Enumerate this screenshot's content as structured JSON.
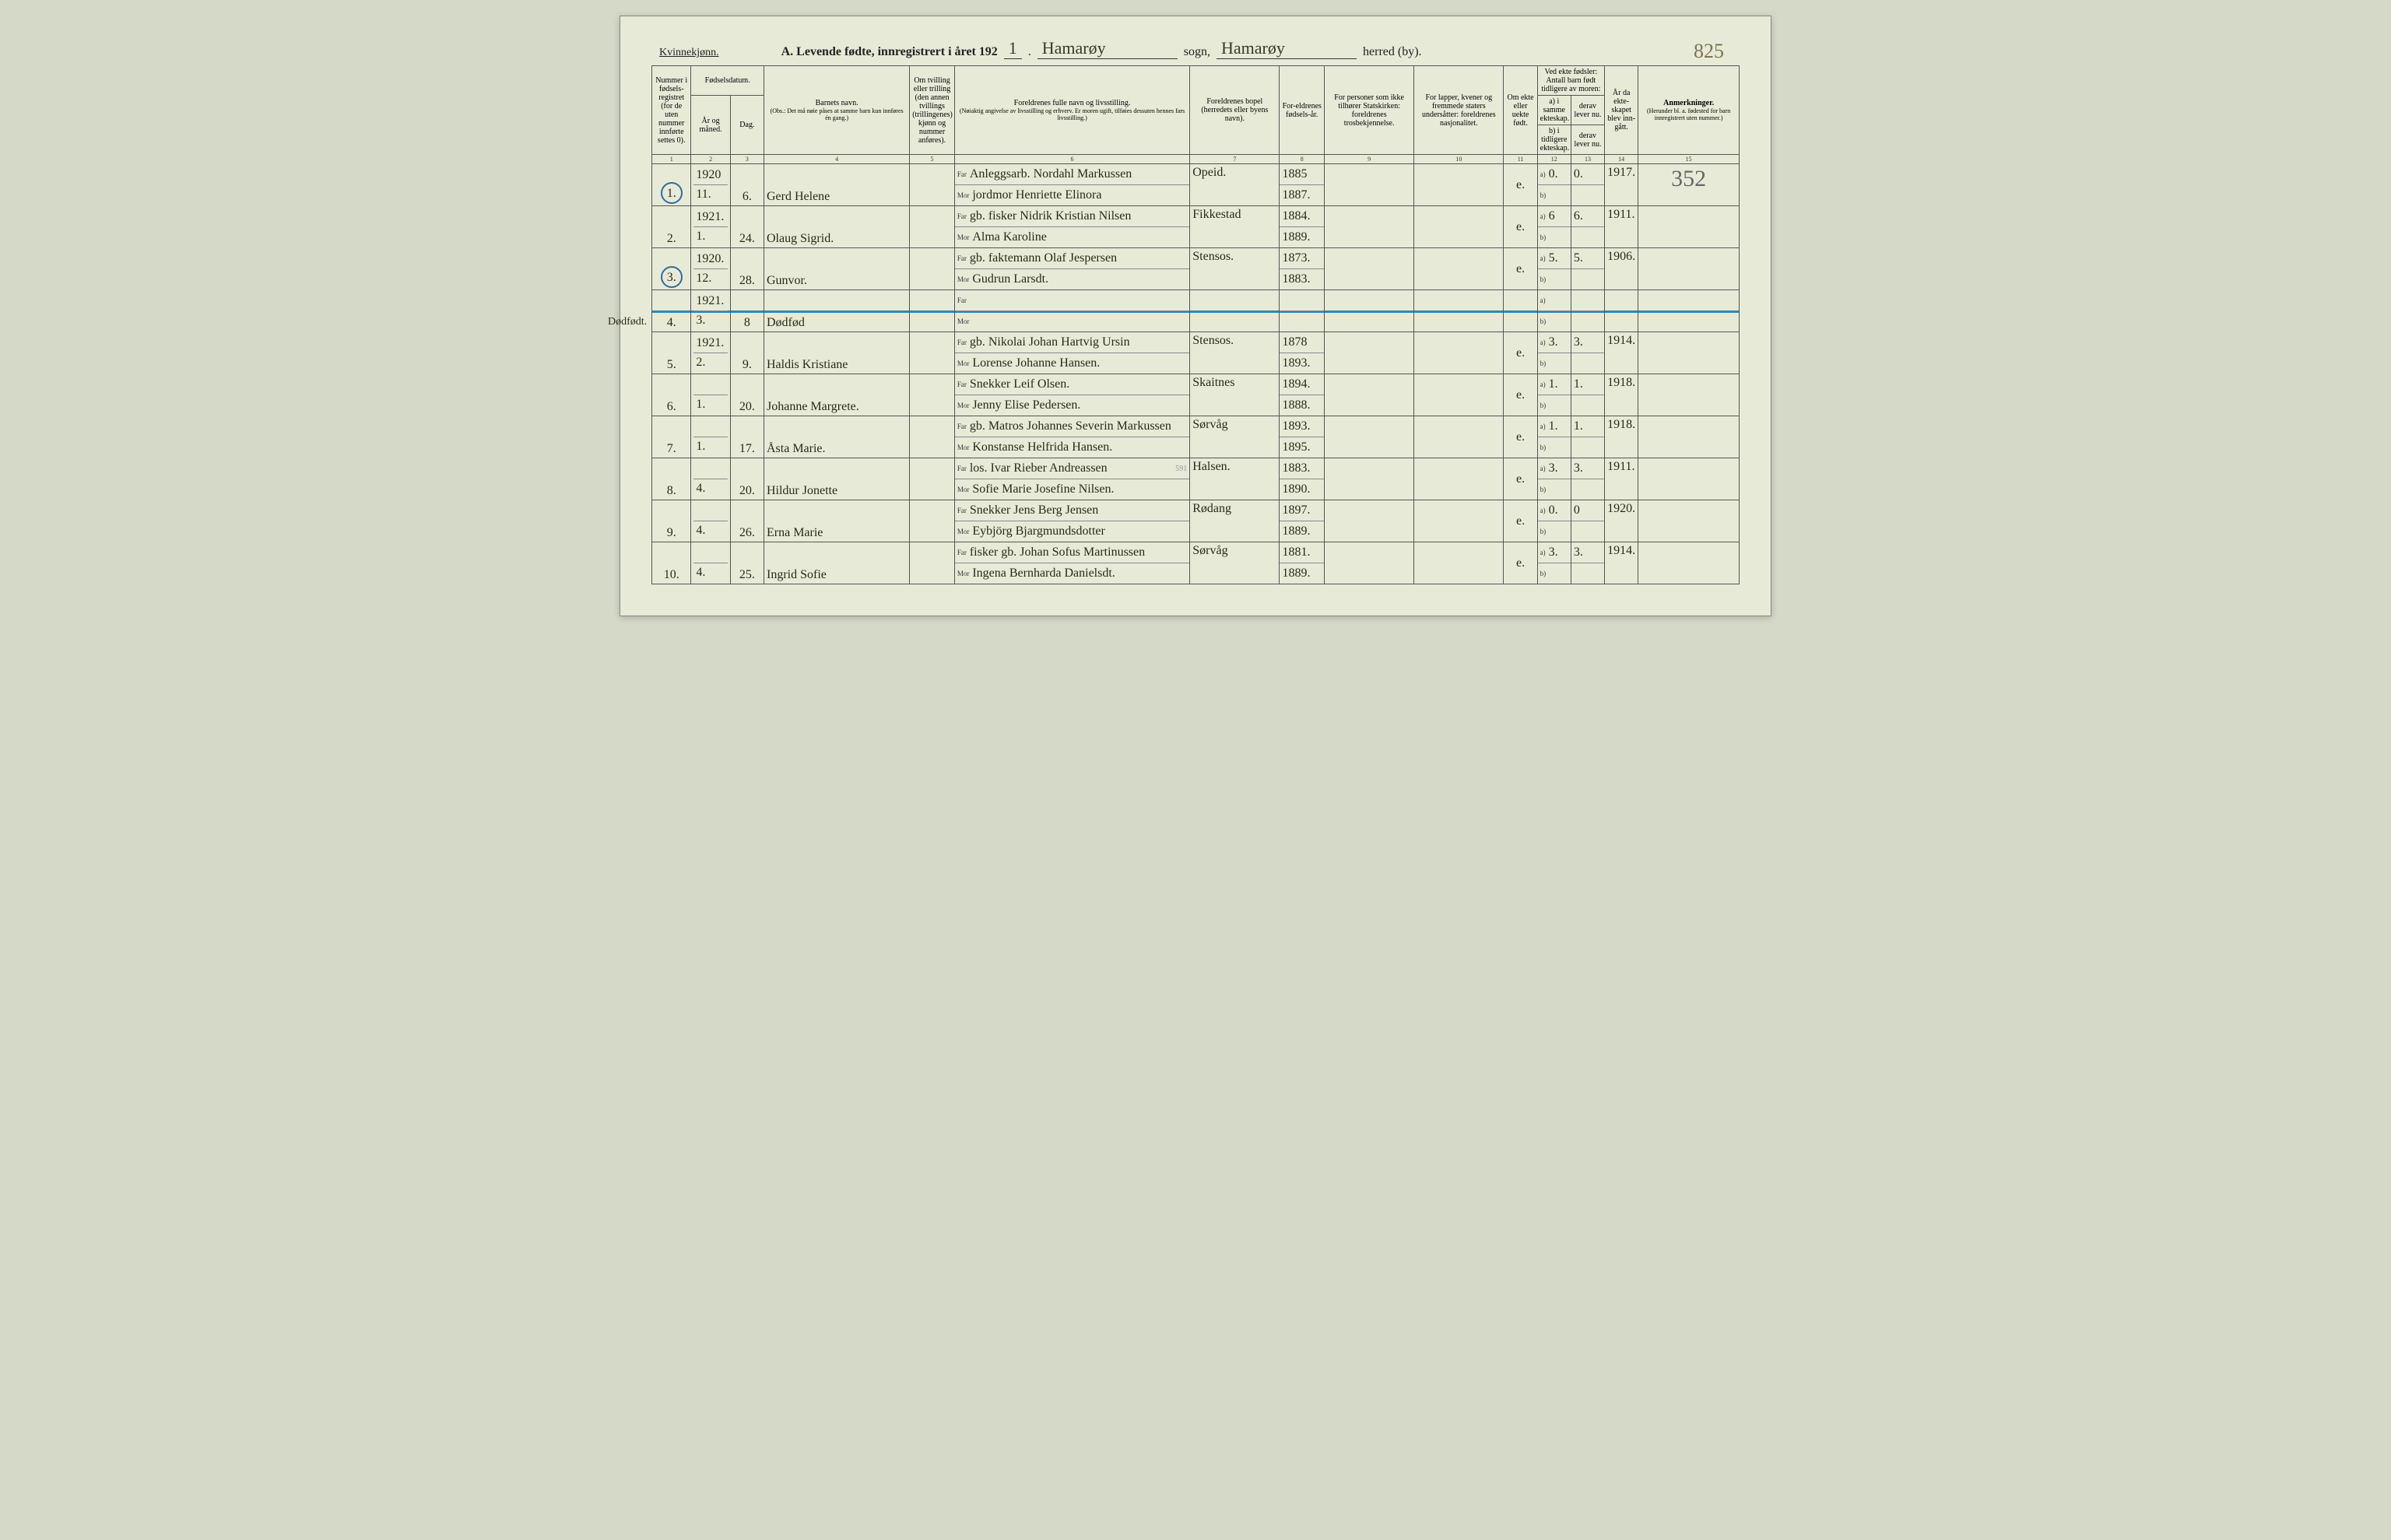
{
  "page_number_handwritten": "825",
  "header": {
    "kvin": "Kvinnekjønn.",
    "title_prefix": "A.   Levende  fødte,  innregistrert  i  året  192",
    "year_suffix": "1",
    "sogn_value": "Hamarøy",
    "sogn_label": "sogn,",
    "herred_value": "Hamarøy",
    "herred_label": "herred (by)."
  },
  "columns": {
    "c1": "Nummer i fødsels-registret (for de uten nummer innførte settes 0).",
    "c2_top": "Fødselsdatum.",
    "c2a": "År og måned.",
    "c2b": "Dag.",
    "c4": "Barnets navn.",
    "c4_sub": "(Obs.: Det må nøie påses at samme barn kun innføres én gang.)",
    "c5": "Om tvilling eller trilling (den annen tvillings (trillingenes) kjønn og nummer anføres).",
    "c6": "Foreldrenes fulle navn og livsstilling.",
    "c6_sub": "(Nøiaktig angivelse av livsstilling og erhverv. Er moren ugift, tilføies dessuten hennes fars livsstilling.)",
    "c7": "Foreldrenes bopel (herredets eller byens navn).",
    "c8": "For-eldrenes fødsels-år.",
    "c9": "For personer som ikke tilhører Statskirken: foreldrenes trosbekjennelse.",
    "c10": "For lapper, kvener og fremmede staters undersåtter: foreldrenes nasjonalitet.",
    "c11": "Om ekte eller uekte født.",
    "c12_top": "Ved ekte fødsler: Antall barn født tidligere av moren:",
    "c12a": "a) i samme ekteskap.",
    "c12b": "b) i tidligere ekteskap.",
    "c13a": "derav lever nu.",
    "c13b": "derav lever nu.",
    "c14": "År da ekte-skapet blev inn-gått.",
    "c15": "Anmerkninger.",
    "c15_sub": "(Herunder bl. a. fødested for barn innregistrert uten nummer.)"
  },
  "colnums": [
    "1",
    "2",
    "3",
    "4",
    "5",
    "6",
    "7",
    "8",
    "9",
    "10",
    "11",
    "12",
    "13",
    "14",
    "15"
  ],
  "printed": {
    "far": "Far",
    "mor": "Mor",
    "a": "a)",
    "b": "b)"
  },
  "rows": [
    {
      "num": "1.",
      "circled": true,
      "ym_top": "1920",
      "ym_bot": "11.",
      "day": "6.",
      "name": "Gerd Helene",
      "far": "Anleggsarb. Nordahl Markussen",
      "mor": "jordmor Henriette Elinora",
      "bopel": "Opeid.",
      "fy_far": "1885",
      "fy_mor": "1887.",
      "ekte": "e.",
      "a_val": "0.",
      "a_derav": "0.",
      "year_m": "1917.",
      "anm": "352"
    },
    {
      "num": "2.",
      "ym_top": "1921.",
      "ym_bot": "1.",
      "day": "24.",
      "name": "Olaug Sigrid.",
      "far": "gb. fisker Nidrik Kristian Nilsen",
      "mor": "Alma Karoline",
      "bopel": "Fikkestad",
      "fy_far": "1884.",
      "fy_mor": "1889.",
      "ekte": "e.",
      "a_val": "6",
      "a_derav": "6.",
      "year_m": "1911."
    },
    {
      "num": "3.",
      "circled": true,
      "ym_top": "1920.",
      "ym_bot": "12.",
      "day": "28.",
      "name": "Gunvor.",
      "far": "gb. faktemann Olaf Jespersen",
      "mor": "Gudrun Larsdt.",
      "bopel": "Stensos.",
      "fy_far": "1873.",
      "fy_mor": "1883.",
      "ekte": "e.",
      "a_val": "5.",
      "a_derav": "5.",
      "year_m": "1906."
    },
    {
      "num": "4.",
      "struck": true,
      "margin_note": "Dødfødt.",
      "ym_top": "1921.",
      "ym_bot": "3.",
      "day": "8",
      "name": "Dødfød",
      "far": "",
      "mor": "",
      "bopel": "",
      "fy_far": "",
      "fy_mor": "",
      "ekte": "",
      "a_val": "",
      "a_derav": "",
      "year_m": ""
    },
    {
      "num": "5.",
      "ym_top": "1921.",
      "ym_bot": "2.",
      "day": "9.",
      "name": "Haldis Kristiane",
      "far": "gb. Nikolai Johan Hartvig Ursin",
      "mor": "Lorense Johanne Hansen.",
      "bopel": "Stensos.",
      "fy_far": "1878",
      "fy_mor": "1893.",
      "ekte": "e.",
      "a_val": "3.",
      "a_derav": "3.",
      "year_m": "1914."
    },
    {
      "num": "6.",
      "ym_top": "",
      "ym_bot": "1.",
      "day": "20.",
      "name": "Johanne Margrete.",
      "far": "Snekker Leif Olsen.",
      "mor": "Jenny Elise Pedersen.",
      "bopel": "Skaitnes",
      "fy_far": "1894.",
      "fy_mor": "1888.",
      "ekte": "e.",
      "a_val": "1.",
      "a_derav": "1.",
      "year_m": "1918."
    },
    {
      "num": "7.",
      "ym_top": "",
      "ym_bot": "1.",
      "day": "17.",
      "name": "Åsta Marie.",
      "far": "gb. Matros Johannes Severin Markussen",
      "mor": "Konstanse Helfrida Hansen.",
      "bopel": "Sørvåg",
      "fy_far": "1893.",
      "fy_mor": "1895.",
      "ekte": "e.",
      "a_val": "1.",
      "a_derav": "1.",
      "year_m": "1918."
    },
    {
      "num": "8.",
      "ym_top": "",
      "ym_bot": "4.",
      "day": "20.",
      "name": "Hildur Jonette",
      "far": "los. Ivar Rieber Andreassen",
      "mor": "Sofie Marie Josefine Nilsen.",
      "bopel": "Halsen.",
      "fy_far": "1883.",
      "fy_mor": "1890.",
      "pencil_above_far": "591",
      "ekte": "e.",
      "a_val": "3.",
      "a_derav": "3.",
      "year_m": "1911."
    },
    {
      "num": "9.",
      "ym_top": "",
      "ym_bot": "4.",
      "day": "26.",
      "name": "Erna Marie",
      "far": "Snekker Jens Berg Jensen",
      "mor": "Eybjörg Bjargmundsdotter",
      "bopel": "Rødang",
      "fy_far": "1897.",
      "fy_mor": "1889.",
      "ekte": "e.",
      "a_val": "0.",
      "a_derav": "0",
      "year_m": "1920."
    },
    {
      "num": "10.",
      "ym_top": "",
      "ym_bot": "4.",
      "day": "25.",
      "name": "Ingrid Sofie",
      "far": "fisker gb. Johan Sofus Martinussen",
      "mor": "Ingena Bernharda Danielsdt.",
      "bopel": "Sørvåg",
      "fy_far": "1881.",
      "fy_mor": "1889.",
      "ekte": "e.",
      "a_val": "3.",
      "a_derav": "3.",
      "year_m": "1914."
    }
  ]
}
